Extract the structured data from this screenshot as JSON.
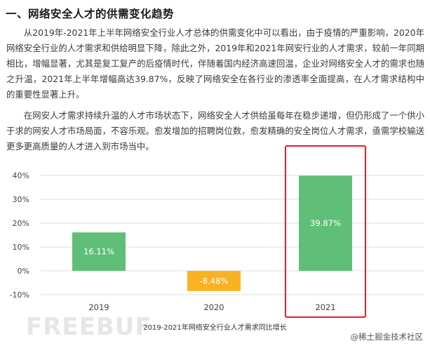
{
  "article": {
    "heading": "一、网络安全人才的供需变化趋势",
    "para1": "从2019年-2021年上半年网络安全行业人才总体的供需变化中可以看出，由于疫情的严重影响，2020年网络安全行业的人才需求和供给明显下降，除此之外，2019年和2021年网安行业的人才需求，较前一年同期相比，增幅显著，尤其是复工复产的后疫情时代，伴随着国内经济高速回温，企业对网络安全人才的需求也随之升温，2021年上半年增幅高达39.87%，反映了网络安全在各行业的渗透率全面提高，在人才需求结构中的重要性显著上升。",
    "para2": "在网安人才需求持续升温的人才市场状态下，网络安全人才供给虽每年在稳步递增，但仍形成了一个供小于求的网安人才市场局面，不容乐观。愈发增加的招聘岗位数，愈发精确的安全岗位人才需求，亟需学校输送更多更高质量的人才进入到市场当中。"
  },
  "chart_data": {
    "type": "bar",
    "categories": [
      "2019",
      "2020",
      "2021"
    ],
    "values": [
      16.11,
      -8.48,
      39.87
    ],
    "value_labels": [
      "16.11%",
      "-8.48%",
      "39.87%"
    ],
    "title": "2019-2021年网络安全行业人才需求同比增长",
    "xlabel": "",
    "ylabel": "",
    "ylim": [
      -10,
      40
    ],
    "yticks": [
      -10,
      0,
      10,
      20,
      30,
      40
    ],
    "ytick_labels": [
      "-10%",
      "0%",
      "10%",
      "20%",
      "30%",
      "40%"
    ],
    "grid": true,
    "highlight_category": "2021",
    "colors": {
      "positive": "#5fbf78",
      "negative": "#f9b322",
      "highlight_box": "#e0202e",
      "grid": "#dcdcdc",
      "bar_label": "#ffffff",
      "axis_text": "#444444"
    }
  },
  "watermarks": {
    "logo": "FREEBUF",
    "site": "@稀土掘金技术社区"
  }
}
